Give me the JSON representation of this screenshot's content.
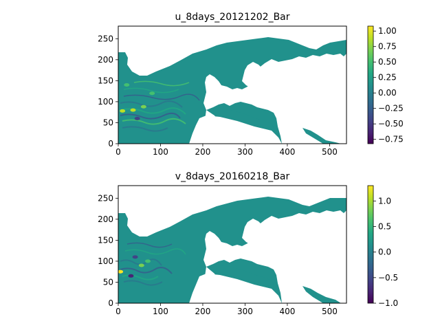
{
  "chart_data": [
    {
      "type": "heatmap",
      "title": "u_8days_20121202_Bar",
      "xlabel": "",
      "ylabel": "",
      "xlim": [
        0,
        540
      ],
      "ylim": [
        0,
        280
      ],
      "x_ticks": [
        0,
        100,
        200,
        300,
        400,
        500
      ],
      "y_ticks": [
        0,
        50,
        100,
        150,
        200,
        250
      ],
      "colormap": "viridis",
      "colorbar": {
        "vmin": -0.82,
        "vmax": 1.08,
        "ticks": [
          -0.75,
          -0.5,
          -0.25,
          0.0,
          0.25,
          0.5,
          0.75,
          1.0
        ],
        "tick_labels": [
          "−0.75",
          "−0.50",
          "−0.25",
          "0.00",
          "0.25",
          "0.50",
          "0.75",
          "1.00"
        ]
      },
      "background_value": 0.0,
      "hot_spots": [
        {
          "x": 10,
          "y": 78,
          "value": 0.95
        },
        {
          "x": 35,
          "y": 80,
          "value": 0.8
        },
        {
          "x": 60,
          "y": 88,
          "value": 0.7
        },
        {
          "x": 20,
          "y": 140,
          "value": 0.6
        },
        {
          "x": 45,
          "y": 60,
          "value": -0.5
        },
        {
          "x": 80,
          "y": 120,
          "value": 0.45
        }
      ],
      "grid": false,
      "legend": "colorbar-right"
    },
    {
      "type": "heatmap",
      "title": "v_8days_20160218_Bar",
      "xlabel": "",
      "ylabel": "",
      "xlim": [
        0,
        540
      ],
      "ylim": [
        0,
        280
      ],
      "x_ticks": [
        0,
        100,
        200,
        300,
        400,
        500
      ],
      "y_ticks": [
        0,
        50,
        100,
        150,
        200,
        250
      ],
      "colormap": "viridis",
      "colorbar": {
        "vmin": -1.0,
        "vmax": 1.3,
        "ticks": [
          -1.0,
          -0.5,
          0.0,
          0.5,
          1.0
        ],
        "tick_labels": [
          "−1.0",
          "−0.5",
          "0.0",
          "0.5",
          "1.0"
        ]
      },
      "background_value": 0.0,
      "hot_spots": [
        {
          "x": 5,
          "y": 75,
          "value": 1.2
        },
        {
          "x": 55,
          "y": 90,
          "value": 0.9
        },
        {
          "x": 30,
          "y": 65,
          "value": -0.8
        },
        {
          "x": 70,
          "y": 100,
          "value": 0.6
        },
        {
          "x": 40,
          "y": 110,
          "value": -0.5
        }
      ],
      "grid": false,
      "legend": "colorbar-right"
    }
  ],
  "colors": {
    "axis": "#000000",
    "land": "#ffffff"
  }
}
